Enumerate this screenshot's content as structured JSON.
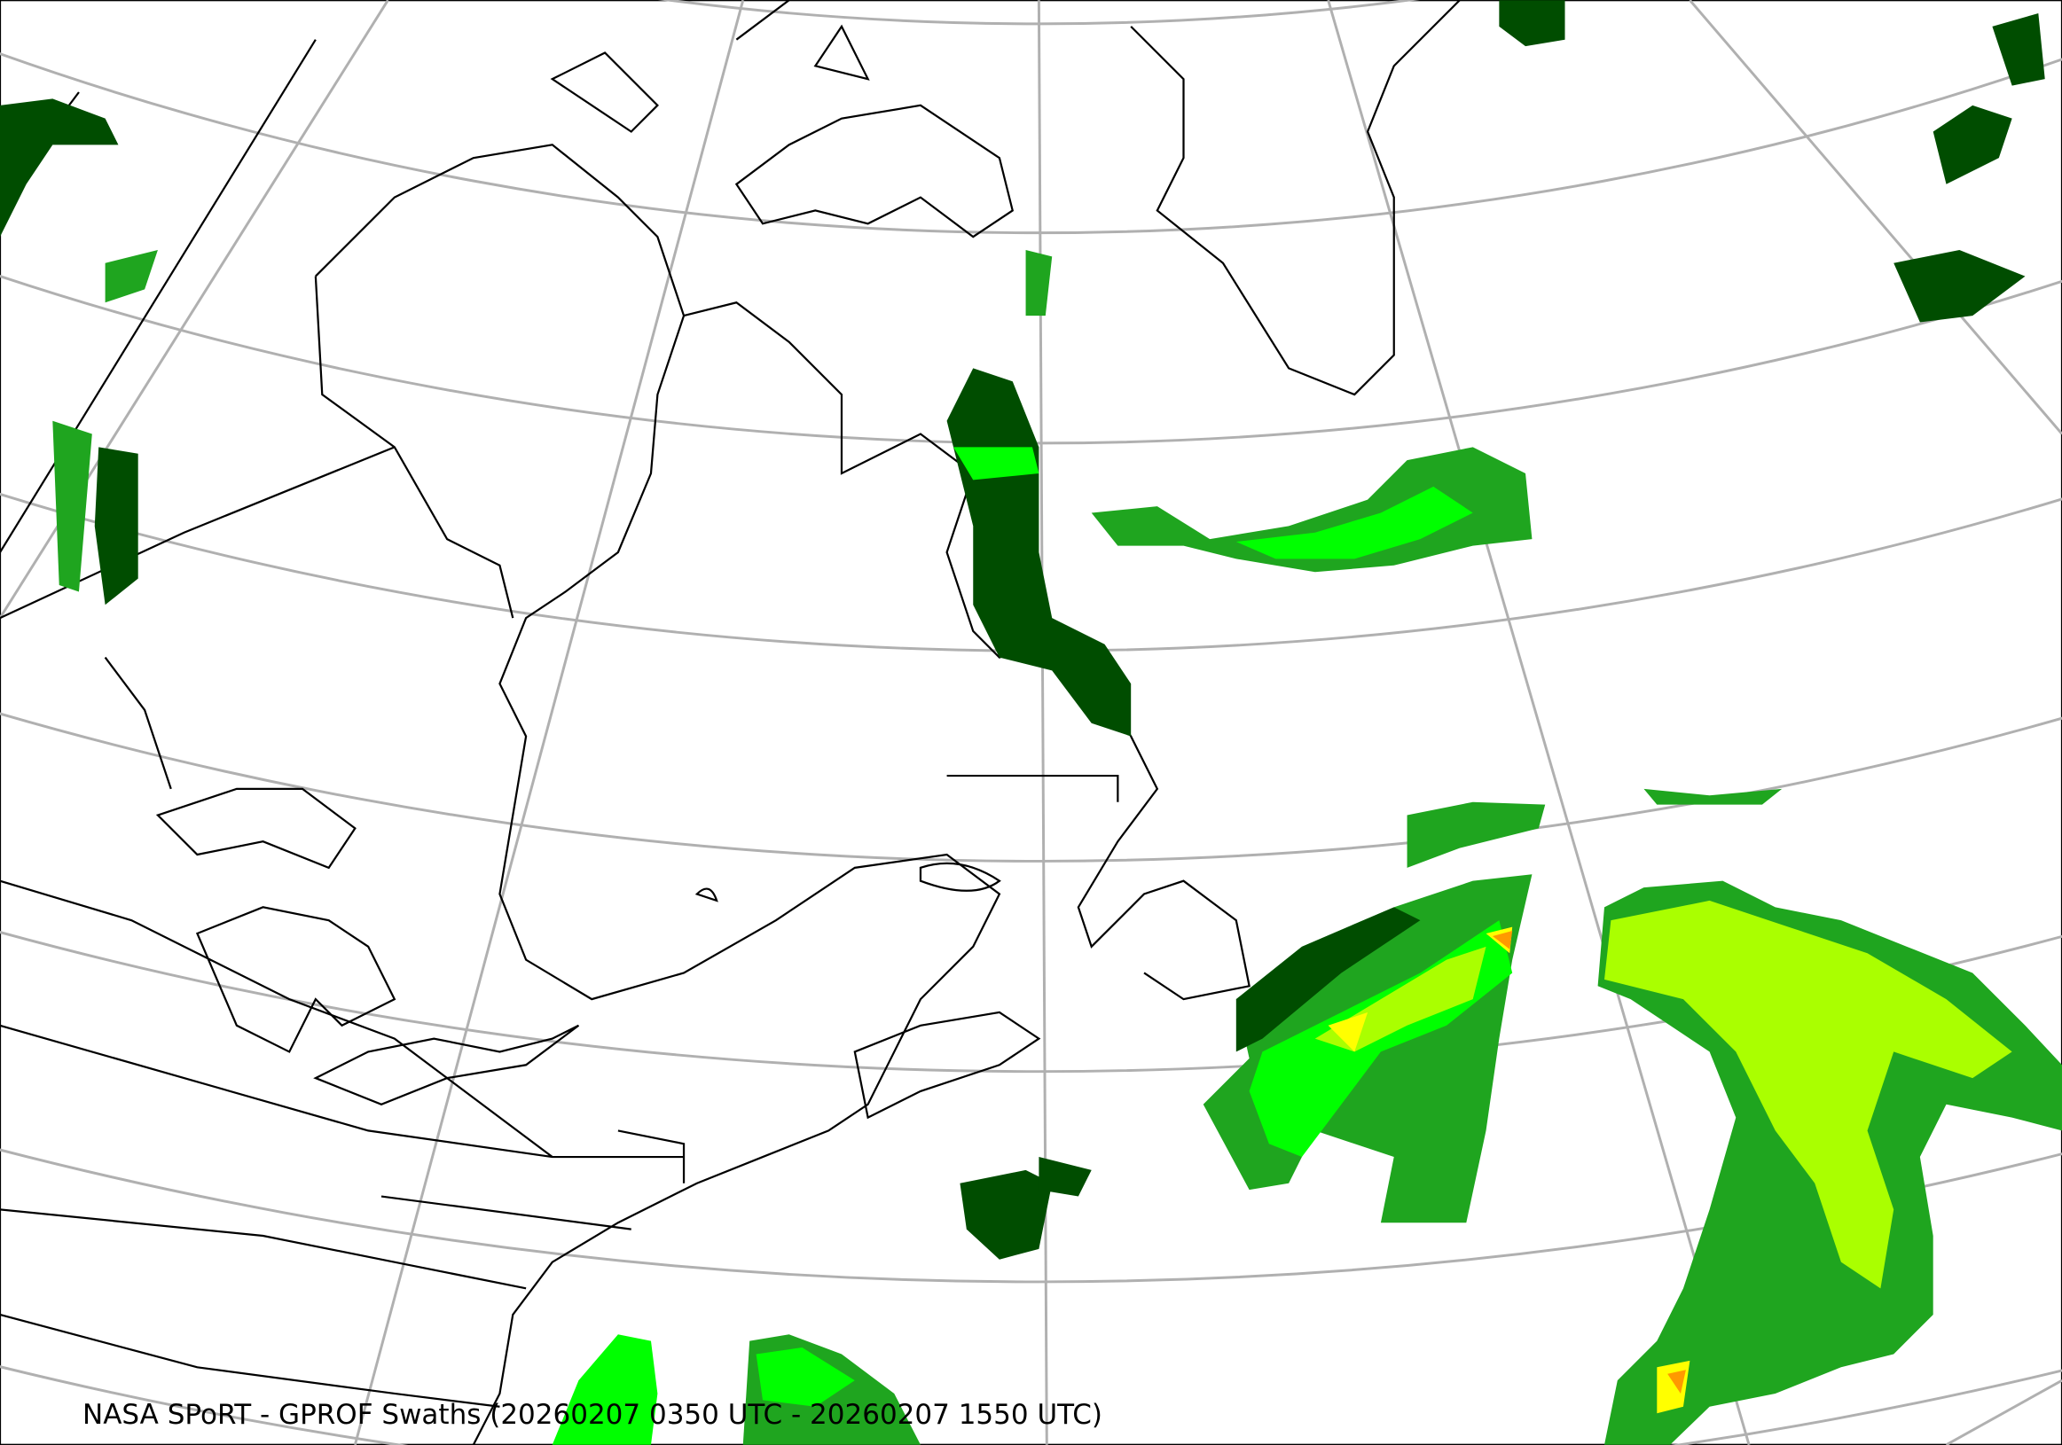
{
  "caption": "NASA SPoRT - GPROF Swaths (20260207 0350 UTC - 20260207 1550 UTC)",
  "colors": {
    "graticule": "#b0b0b0",
    "coastline": "#000000",
    "precip_light": "#00ff00",
    "precip_medium": "#1fa51f",
    "precip_dark": "#004d00",
    "precip_heavy": "#aaff00",
    "precip_yellow": "#ffff00",
    "precip_orange": "#ff9900"
  }
}
